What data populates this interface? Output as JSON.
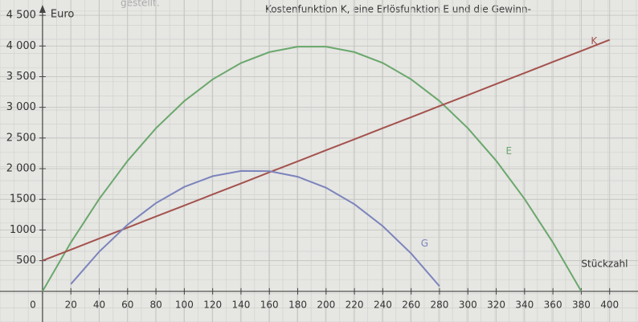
{
  "header_text": [
    "gestellt.",
    "Kostenfunktion K, eine Erlösfunktion E und die Gewinn-"
  ],
  "chart_data": {
    "type": "line",
    "y_label": "Euro",
    "x_label": "Stückzahl",
    "x": [
      0,
      20,
      40,
      60,
      80,
      100,
      120,
      140,
      160,
      180,
      200,
      220,
      240,
      260,
      280,
      300,
      320,
      340,
      360,
      380,
      400
    ],
    "series": [
      {
        "name": "E",
        "color": "#6aa86c",
        "values": [
          0,
          798,
          1507,
          2127,
          2659,
          3103,
          3457,
          3723,
          3900,
          3989,
          3989,
          3900,
          3723,
          3457,
          3103,
          2659,
          2127,
          1507,
          798,
          0,
          null
        ]
      },
      {
        "name": "K",
        "color": "#a4524c",
        "values": [
          500,
          680,
          860,
          1040,
          1220,
          1400,
          1580,
          1760,
          1940,
          2120,
          2300,
          2480,
          2660,
          2840,
          3020,
          3200,
          3380,
          3560,
          3740,
          3920,
          4100
        ]
      },
      {
        "name": "G",
        "color": "#7c84bc",
        "values": [
          null,
          118,
          647,
          1087,
          1439,
          1703,
          1877,
          1963,
          1960,
          1869,
          1689,
          1420,
          1063,
          617,
          83,
          null,
          null,
          null,
          null,
          null,
          null
        ]
      }
    ],
    "xlim": [
      -30,
      420
    ],
    "ylim": [
      -500,
      4750
    ],
    "xticks": [
      0,
      20,
      40,
      60,
      80,
      100,
      120,
      140,
      160,
      180,
      200,
      220,
      240,
      260,
      280,
      300,
      320,
      340,
      360,
      380,
      400
    ],
    "yticks": [
      {
        "value": 500,
        "label": "500"
      },
      {
        "value": 1000,
        "label": "1000"
      },
      {
        "value": 1500,
        "label": "1500"
      },
      {
        "value": 2000,
        "label": "2 000"
      },
      {
        "value": 2500,
        "label": "2 500"
      },
      {
        "value": 3000,
        "label": "3 000"
      },
      {
        "value": 3500,
        "label": "3 500"
      },
      {
        "value": 4000,
        "label": "4 000"
      },
      {
        "value": 4500,
        "label": "4 500"
      }
    ],
    "grid": true
  }
}
